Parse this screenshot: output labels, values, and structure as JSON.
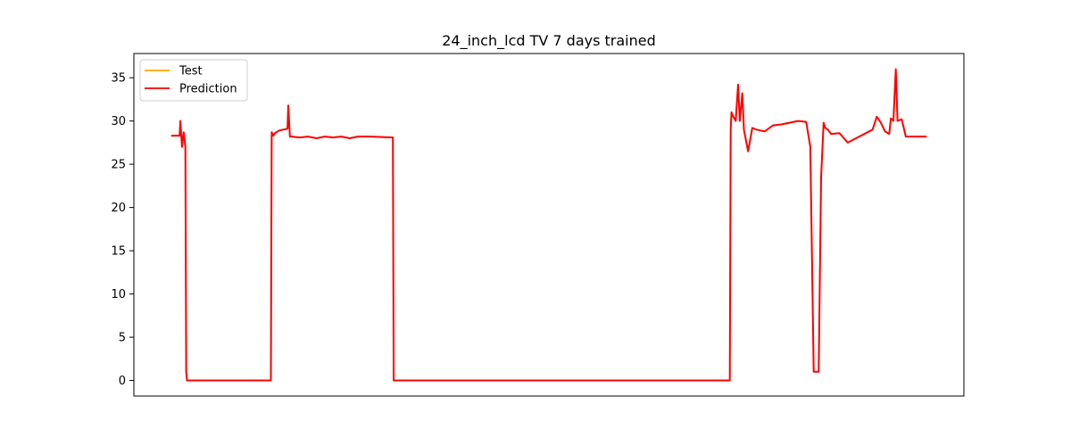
{
  "chart_data": {
    "type": "line",
    "title": "24_inch_lcd TV 7 days trained",
    "xlabel": "",
    "ylabel": "",
    "xlim": [
      0,
      1000
    ],
    "ylim": [
      -1.8,
      37.8
    ],
    "yticks": [
      0,
      5,
      10,
      15,
      20,
      25,
      30,
      35
    ],
    "xticks_shown": false,
    "grid": false,
    "legend_position": "top-left",
    "series": [
      {
        "name": "Test",
        "color": "#ffa500",
        "x": [
          45,
          55,
          56,
          58,
          60,
          62,
          63,
          64,
          165,
          166,
          168,
          170,
          175,
          180,
          185,
          186,
          188,
          190,
          200,
          210,
          220,
          230,
          240,
          250,
          260,
          270,
          285,
          312,
          313,
          718,
          719,
          720,
          722,
          725,
          728,
          730,
          733,
          735,
          740,
          745,
          750,
          760,
          770,
          780,
          790,
          800,
          810,
          815,
          819,
          820,
          822,
          825,
          828,
          831,
          833,
          836,
          840,
          850,
          860,
          870,
          880,
          890,
          895,
          900,
          905,
          910,
          912,
          915,
          918,
          920,
          925,
          930,
          955
        ],
        "y": [
          28.3,
          28.3,
          30.0,
          27.0,
          28.7,
          27.0,
          1.0,
          0.0,
          0.0,
          28.7,
          28.3,
          28.6,
          28.9,
          29.0,
          29.1,
          31.8,
          28.2,
          28.2,
          28.1,
          28.2,
          28.0,
          28.2,
          28.1,
          28.2,
          28.0,
          28.2,
          28.2,
          28.1,
          0.0,
          0.0,
          29.0,
          31.0,
          30.5,
          30.0,
          34.2,
          30.0,
          33.2,
          29.0,
          26.5,
          29.2,
          29.0,
          28.8,
          29.5,
          29.6,
          29.8,
          30.0,
          29.9,
          27.0,
          1.0,
          1.0,
          1.0,
          1.0,
          23.5,
          29.8,
          29.2,
          29.0,
          28.5,
          28.6,
          27.5,
          28.0,
          28.5,
          29.0,
          30.5,
          29.8,
          28.8,
          28.5,
          30.3,
          30.0,
          36.0,
          30.0,
          30.2,
          28.2,
          28.2
        ]
      },
      {
        "name": "Prediction",
        "color": "#ff0000",
        "x": [
          45,
          55,
          56,
          58,
          60,
          62,
          63,
          64,
          165,
          166,
          168,
          170,
          175,
          180,
          185,
          186,
          188,
          190,
          200,
          210,
          220,
          230,
          240,
          250,
          260,
          270,
          285,
          312,
          313,
          718,
          719,
          720,
          722,
          725,
          728,
          730,
          733,
          735,
          740,
          745,
          750,
          760,
          770,
          780,
          790,
          800,
          810,
          815,
          819,
          820,
          822,
          825,
          828,
          831,
          833,
          836,
          840,
          850,
          860,
          870,
          880,
          890,
          895,
          900,
          905,
          910,
          912,
          915,
          918,
          920,
          925,
          930,
          955
        ],
        "y": [
          28.3,
          28.3,
          30.0,
          27.0,
          28.7,
          27.0,
          1.0,
          0.0,
          0.0,
          28.7,
          28.3,
          28.6,
          28.9,
          29.0,
          29.1,
          31.8,
          28.2,
          28.2,
          28.1,
          28.2,
          28.0,
          28.2,
          28.1,
          28.2,
          28.0,
          28.2,
          28.2,
          28.1,
          0.0,
          0.0,
          29.0,
          31.0,
          30.5,
          30.0,
          34.2,
          30.0,
          33.2,
          29.0,
          26.5,
          29.2,
          29.0,
          28.8,
          29.5,
          29.6,
          29.8,
          30.0,
          29.9,
          27.0,
          1.0,
          1.0,
          1.0,
          1.0,
          23.5,
          29.8,
          29.2,
          29.0,
          28.5,
          28.6,
          27.5,
          28.0,
          28.5,
          29.0,
          30.5,
          29.8,
          28.8,
          28.5,
          30.3,
          30.0,
          36.0,
          30.0,
          30.2,
          28.2,
          28.2
        ]
      }
    ]
  }
}
